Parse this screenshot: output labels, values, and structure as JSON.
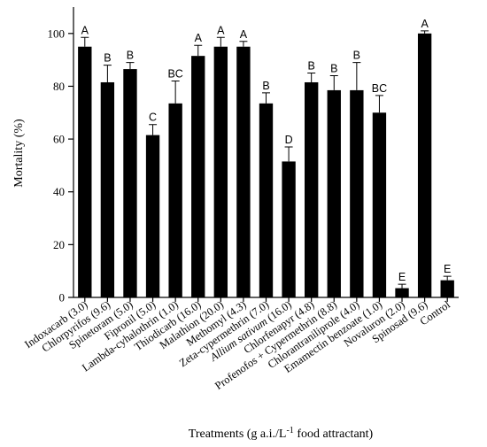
{
  "chart_data": {
    "type": "bar",
    "ylabel": "Mortality (%)",
    "xlabel": {
      "prefix": "Treatments (g a.i./L",
      "superscript": "-1",
      "suffix": " food attractant)"
    },
    "ylim": [
      0,
      110
    ],
    "yticks": [
      0,
      20,
      40,
      60,
      80,
      100
    ],
    "grid": false,
    "bar_color": "#000000",
    "categories": [
      {
        "label": "Indoxacarb (3.0)",
        "italic": ""
      },
      {
        "label": "Chlorpyrifos (9.6)",
        "italic": ""
      },
      {
        "label": "Spinetoram (5.0)",
        "italic": ""
      },
      {
        "label": "Fipronil (5.0)",
        "italic": ""
      },
      {
        "label": "Lambda-cyhalothrin (1.0)",
        "italic": ""
      },
      {
        "label": "Thiodicarb (16.0)",
        "italic": ""
      },
      {
        "label": "Malathion (20.0)",
        "italic": ""
      },
      {
        "label": "Methomyl (4.3)",
        "italic": ""
      },
      {
        "label": "Zeta-cypermethrin (7.0)",
        "italic": ""
      },
      {
        "label": " (16.0)",
        "italic": "Allium sativum"
      },
      {
        "label": "Chlorfenapyr (4.8)",
        "italic": ""
      },
      {
        "label": "Profenofos + Cypermethrin (8.8)",
        "italic": ""
      },
      {
        "label": "Chlorantraniliprole (4.0)",
        "italic": ""
      },
      {
        "label": "Emamectin benzoate (1.0)",
        "italic": ""
      },
      {
        "label": "Novaluron (2.0)",
        "italic": ""
      },
      {
        "label": "Spinosad (9.6)",
        "italic": ""
      },
      {
        "label": "Control",
        "italic": ""
      }
    ],
    "values": [
      95,
      81.5,
      86.5,
      61.5,
      73.5,
      91.5,
      95,
      95,
      73.5,
      51.5,
      81.5,
      78.5,
      78.5,
      70,
      3.5,
      100,
      6.5
    ],
    "errors": [
      3.5,
      6.5,
      2.5,
      4,
      8.5,
      4,
      3.5,
      2,
      4,
      5.5,
      3.5,
      5.5,
      10.5,
      6.5,
      1.5,
      1,
      1.5
    ],
    "letters": [
      "A",
      "B",
      "B",
      "C",
      "BC",
      "A",
      "A",
      "A",
      "B",
      "D",
      "B",
      "B",
      "B",
      "BC",
      "E",
      "A",
      "E"
    ]
  }
}
